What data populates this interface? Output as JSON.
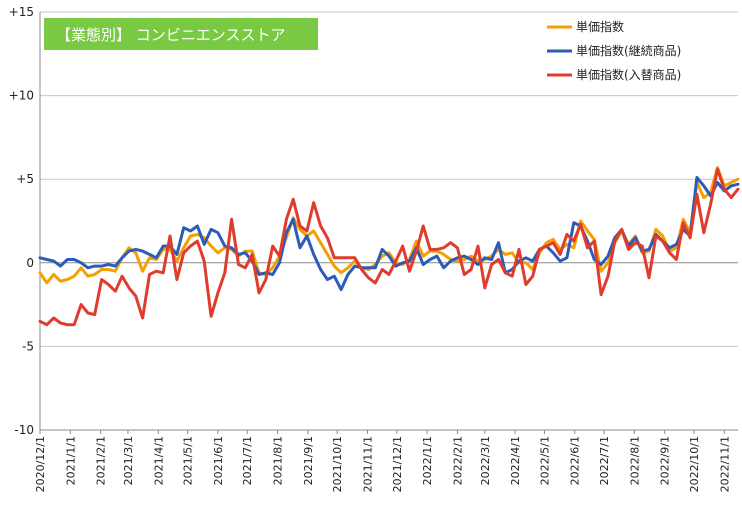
{
  "chart_data": {
    "type": "line",
    "title": "【業態別】 コンビニエンスストア",
    "title_bg_color": "#7ac943",
    "title_text_color": "#ffffff",
    "ylim": [
      -10,
      15
    ],
    "y_ticks": [
      "+15",
      "+10",
      "+5",
      "0",
      "-5",
      "-10"
    ],
    "y_tick_values": [
      15,
      10,
      5,
      0,
      -5,
      -10
    ],
    "grid": "horizontal",
    "legend_position": "top-right",
    "x_tick_labels": [
      "2020/12/1",
      "2021/1/1",
      "2021/2/1",
      "2021/3/1",
      "2021/4/1",
      "2021/5/1",
      "2021/6/1",
      "2021/7/1",
      "2021/8/1",
      "2021/9/1",
      "2021/10/1",
      "2021/11/1",
      "2021/12/1",
      "2022/1/1",
      "2022/2/1",
      "2022/3/1",
      "2022/4/1",
      "2022/5/1",
      "2022/6/1",
      "2022/7/1",
      "2022/8/1",
      "2022/9/1",
      "2022/10/1",
      "2022/11/1"
    ],
    "x_start": "2020-12-01",
    "x_interval_days": 7,
    "series": [
      {
        "name": "単価指数",
        "color": "#f5a000",
        "values": [
          -0.6,
          -1.2,
          -0.7,
          -1.1,
          -1.0,
          -0.8,
          -0.3,
          -0.8,
          -0.7,
          -0.4,
          -0.4,
          -0.5,
          0.3,
          0.9,
          0.6,
          -0.5,
          0.3,
          0.2,
          0.8,
          0.8,
          0.1,
          0.9,
          1.6,
          1.7,
          1.5,
          1.0,
          0.6,
          0.9,
          0.8,
          0.4,
          0.7,
          0.7,
          -0.6,
          -0.7,
          -0.3,
          0.4,
          1.5,
          2.7,
          2.0,
          1.6,
          1.9,
          1.2,
          0.5,
          -0.2,
          -0.6,
          -0.3,
          0.1,
          -0.3,
          -0.4,
          -0.1,
          0.4,
          0.6,
          0.0,
          -0.1,
          0.2,
          1.3,
          0.4,
          0.7,
          0.7,
          0.5,
          0.2,
          0.1,
          0.2,
          0.4,
          0.1,
          0.2,
          0.4,
          0.8,
          0.5,
          0.6,
          0.0,
          0.0,
          -0.4,
          0.6,
          1.2,
          1.4,
          0.8,
          1.1,
          0.9,
          2.5,
          1.9,
          1.4,
          -0.5,
          0.0,
          1.2,
          1.9,
          1.1,
          1.6,
          0.6,
          0.7,
          2.0,
          1.6,
          0.7,
          0.9,
          2.6,
          1.8,
          4.8,
          3.9,
          4.2,
          5.7,
          4.6,
          4.8,
          5.0
        ]
      },
      {
        "name": "単価指数(継続商品)",
        "color": "#2a5cb8",
        "values": [
          0.3,
          0.2,
          0.1,
          -0.2,
          0.2,
          0.2,
          0.0,
          -0.3,
          -0.2,
          -0.2,
          -0.1,
          -0.2,
          0.3,
          0.7,
          0.8,
          0.7,
          0.5,
          0.3,
          1.0,
          1.0,
          0.5,
          2.1,
          1.9,
          2.2,
          1.1,
          2.0,
          1.8,
          1.0,
          0.9,
          0.5,
          0.6,
          0.1,
          -0.7,
          -0.6,
          -0.7,
          0.0,
          1.8,
          2.6,
          0.9,
          1.6,
          0.5,
          -0.4,
          -1.0,
          -0.8,
          -1.6,
          -0.7,
          -0.2,
          -0.3,
          -0.3,
          -0.3,
          0.8,
          0.4,
          -0.2,
          0.0,
          0.1,
          0.9,
          -0.1,
          0.2,
          0.4,
          -0.3,
          0.1,
          0.3,
          0.4,
          0.2,
          -0.1,
          0.3,
          0.2,
          1.2,
          -0.6,
          -0.4,
          0.1,
          0.3,
          0.1,
          0.8,
          1.0,
          0.6,
          0.1,
          0.3,
          2.4,
          2.2,
          1.3,
          0.2,
          -0.1,
          0.4,
          1.5,
          2.0,
          1.0,
          1.5,
          0.7,
          0.8,
          1.7,
          1.3,
          0.9,
          1.1,
          2.0,
          1.6,
          5.1,
          4.6,
          4.0,
          4.8,
          4.3,
          4.6,
          4.7
        ]
      },
      {
        "name": "単価指数(入替商品)",
        "color": "#e03c2e",
        "values": [
          -3.5,
          -3.7,
          -3.3,
          -3.6,
          -3.7,
          -3.7,
          -2.5,
          -3.0,
          -3.1,
          -1.0,
          -1.3,
          -1.7,
          -0.8,
          -1.5,
          -2.0,
          -3.3,
          -0.7,
          -0.5,
          -0.6,
          1.6,
          -1.0,
          0.6,
          1.0,
          1.3,
          0.1,
          -3.2,
          -1.8,
          -0.6,
          2.6,
          -0.1,
          -0.3,
          0.5,
          -1.8,
          -1.0,
          1.0,
          0.4,
          2.6,
          3.8,
          2.2,
          1.9,
          3.6,
          2.2,
          1.5,
          0.3,
          0.3,
          0.3,
          0.3,
          -0.4,
          -0.9,
          -1.2,
          -0.4,
          -0.7,
          0.1,
          1.0,
          -0.5,
          0.7,
          2.2,
          0.8,
          0.8,
          0.9,
          1.2,
          0.9,
          -0.7,
          -0.4,
          1.0,
          -1.5,
          -0.1,
          0.2,
          -0.6,
          -0.8,
          0.8,
          -1.3,
          -0.8,
          0.8,
          1.0,
          1.2,
          0.5,
          1.7,
          1.3,
          2.3,
          0.9,
          1.3,
          -1.9,
          -0.8,
          1.3,
          2.0,
          0.8,
          1.2,
          1.0,
          -0.9,
          1.6,
          1.3,
          0.6,
          0.2,
          2.4,
          1.5,
          4.1,
          1.8,
          3.5,
          5.6,
          4.4,
          3.9,
          4.4
        ]
      }
    ]
  }
}
